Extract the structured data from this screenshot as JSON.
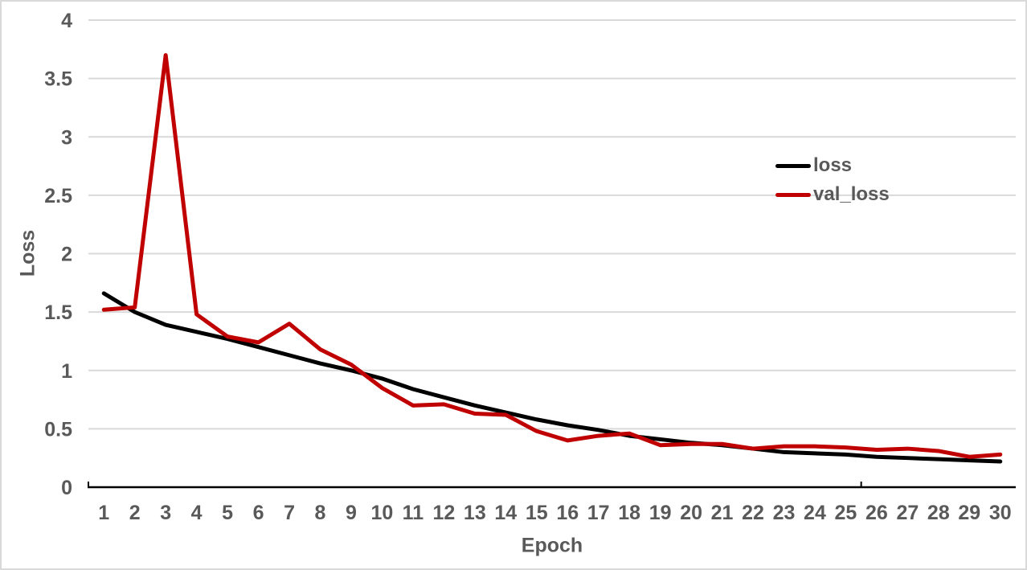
{
  "chart_data": {
    "type": "line",
    "title": "",
    "xlabel": "Epoch",
    "ylabel": "Loss",
    "x": [
      1,
      2,
      3,
      4,
      5,
      6,
      7,
      8,
      9,
      10,
      11,
      12,
      13,
      14,
      15,
      16,
      17,
      18,
      19,
      20,
      21,
      22,
      23,
      24,
      25,
      26,
      27,
      28,
      29,
      30
    ],
    "series": [
      {
        "name": "loss",
        "color": "#000000",
        "values": [
          1.66,
          1.5,
          1.39,
          1.33,
          1.27,
          1.2,
          1.13,
          1.06,
          1.0,
          0.93,
          0.84,
          0.77,
          0.7,
          0.64,
          0.58,
          0.53,
          0.49,
          0.44,
          0.41,
          0.38,
          0.36,
          0.33,
          0.3,
          0.29,
          0.28,
          0.26,
          0.25,
          0.24,
          0.23,
          0.22
        ]
      },
      {
        "name": "val_loss",
        "color": "#C00000",
        "values": [
          1.52,
          1.54,
          3.7,
          1.48,
          1.29,
          1.24,
          1.4,
          1.18,
          1.05,
          0.85,
          0.7,
          0.71,
          0.63,
          0.62,
          0.48,
          0.4,
          0.44,
          0.46,
          0.36,
          0.37,
          0.37,
          0.33,
          0.35,
          0.35,
          0.34,
          0.32,
          0.33,
          0.31,
          0.26,
          0.28
        ]
      }
    ],
    "ylim": [
      0,
      4
    ],
    "ytick_step": 0.5,
    "ytick_labels": [
      "0",
      "0.5",
      "1",
      "1.5",
      "2",
      "2.5",
      "3",
      "3.5",
      "4"
    ],
    "grid": "horizontal",
    "legend_position": "inside-right",
    "axis_boundary_ticks": [
      0,
      25
    ],
    "colors": {
      "gridline": "#D9D9D9",
      "axis_line": "#000000",
      "tick_label": "#595959",
      "frame_border": "#D9D9D9",
      "background": "#FFFFFF"
    }
  }
}
